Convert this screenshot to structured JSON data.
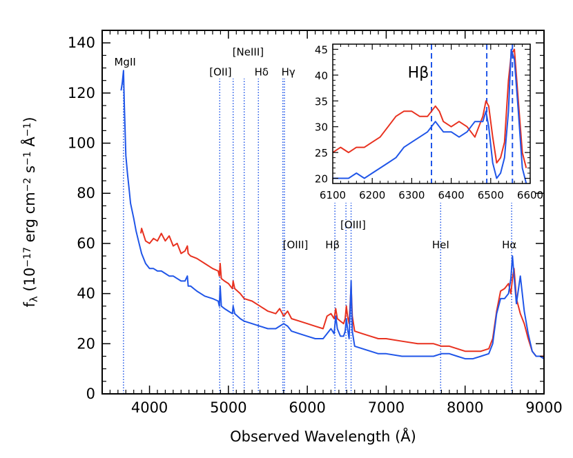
{
  "chart_data": [
    {
      "type": "line",
      "xlabel": "Observed Wavelength (Å)",
      "ylabel_parts": [
        "f",
        "λ",
        " (10",
        "−17",
        " erg cm",
        "−2",
        " s",
        "−1",
        " Å",
        "−1",
        ")"
      ],
      "xlim": [
        3400,
        9000
      ],
      "ylim": [
        0,
        145
      ],
      "xticks": [
        4000,
        5000,
        6000,
        7000,
        8000,
        9000
      ],
      "yticks": [
        0,
        20,
        40,
        60,
        80,
        100,
        120,
        140
      ],
      "line_markers": [
        {
          "label": "MgII",
          "x": 3670
        },
        {
          "label": "[OII]",
          "x": 4890
        },
        {
          "label": "[NeIII]",
          "x": 5060
        },
        {
          "label": "[NeIII]",
          "x": 5200
        },
        {
          "label": "Hδ",
          "x": 5380
        },
        {
          "label": "Hγ",
          "x": 5690
        },
        {
          "label": "Hγ",
          "x": 5710
        },
        {
          "label": "[OIII]",
          "x": 5690
        },
        {
          "label": "Hβ",
          "x": 6350
        },
        {
          "label": "[OIII]",
          "x": 6490
        },
        {
          "label": "[OIII]",
          "x": 6555
        },
        {
          "label": "HeI",
          "x": 7690
        },
        {
          "label": "Hα",
          "x": 8590
        }
      ],
      "marker_labels": [
        {
          "text": "MgII",
          "x": 3690,
          "y": 131
        },
        {
          "text": "[OII]",
          "x": 4900,
          "y": 127
        },
        {
          "text": "[NeIII]",
          "x": 5250,
          "y": 135
        },
        {
          "text": "Hδ",
          "x": 5420,
          "y": 127
        },
        {
          "text": "Hγ",
          "x": 5760,
          "y": 127
        },
        {
          "text": "[OIII]",
          "x": 5850,
          "y": 58
        },
        {
          "text": "Hβ",
          "x": 6320,
          "y": 58
        },
        {
          "text": "[OIII]",
          "x": 6580,
          "y": 66
        },
        {
          "text": "HeI",
          "x": 7690,
          "y": 58
        },
        {
          "text": "Hα",
          "x": 8560,
          "y": 58
        }
      ],
      "series": [
        {
          "color": "#e8311f",
          "x": [
            3890,
            3900,
            3950,
            4000,
            4050,
            4100,
            4150,
            4200,
            4250,
            4300,
            4350,
            4400,
            4450,
            4480,
            4490,
            4520,
            4600,
            4700,
            4800,
            4870,
            4885,
            4895,
            4910,
            4950,
            5000,
            5050,
            5060,
            5080,
            5150,
            5200,
            5300,
            5400,
            5500,
            5600,
            5650,
            5700,
            5750,
            5800,
            5900,
            6000,
            6100,
            6200,
            6250,
            6300,
            6340,
            6360,
            6380,
            6420,
            6460,
            6480,
            6495,
            6510,
            6530,
            6555,
            6570,
            6600,
            6700,
            6800,
            6900,
            7000,
            7200,
            7400,
            7600,
            7700,
            7800,
            7900,
            8000,
            8100,
            8200,
            8300,
            8350,
            8400,
            8450,
            8500,
            8550,
            8580,
            8600,
            8620,
            8650,
            8700,
            8750,
            8800,
            8850,
            8900,
            8950,
            9000
          ],
          "y": [
            64,
            66,
            61,
            60,
            62,
            61,
            64,
            61,
            63,
            59,
            60,
            56,
            57,
            59,
            56,
            55,
            54,
            52,
            50,
            49,
            47,
            52,
            46,
            45,
            44,
            42,
            45,
            42,
            40,
            38,
            37,
            35,
            33,
            32,
            34,
            31,
            33,
            30,
            29,
            28,
            27,
            26,
            31,
            32,
            30,
            34,
            30,
            29,
            28,
            30,
            35,
            31,
            28,
            43,
            31,
            25,
            24,
            23,
            22,
            22,
            21,
            20,
            20,
            19,
            19,
            18,
            17,
            17,
            17,
            18,
            22,
            33,
            41,
            42,
            44,
            40,
            46,
            50,
            38,
            32,
            28,
            22,
            17,
            15,
            15,
            15
          ]
        },
        {
          "color": "#1f55e8",
          "x": [
            3640,
            3655,
            3670,
            3680,
            3690,
            3700,
            3720,
            3740,
            3760,
            3780,
            3800,
            3830,
            3860,
            3900,
            3950,
            4000,
            4050,
            4100,
            4150,
            4200,
            4250,
            4300,
            4350,
            4400,
            4450,
            4480,
            4490,
            4520,
            4600,
            4700,
            4800,
            4870,
            4885,
            4895,
            4910,
            4950,
            5000,
            5050,
            5060,
            5080,
            5150,
            5200,
            5300,
            5400,
            5500,
            5600,
            5650,
            5700,
            5750,
            5800,
            5900,
            6000,
            6100,
            6200,
            6250,
            6300,
            6340,
            6360,
            6380,
            6420,
            6460,
            6480,
            6495,
            6510,
            6530,
            6555,
            6570,
            6600,
            6700,
            6800,
            6900,
            7000,
            7200,
            7400,
            7600,
            7700,
            7800,
            7900,
            8000,
            8100,
            8200,
            8300,
            8350,
            8400,
            8450,
            8500,
            8550,
            8580,
            8600,
            8620,
            8650,
            8700,
            8750,
            8800,
            8850,
            8900,
            8950,
            9000
          ],
          "y": [
            121,
            124,
            129,
            116,
            106,
            95,
            88,
            82,
            76,
            73,
            70,
            65,
            61,
            56,
            52,
            50,
            50,
            49,
            49,
            48,
            47,
            47,
            46,
            45,
            45,
            47,
            43,
            43,
            41,
            39,
            38,
            37,
            35,
            43,
            35,
            34,
            33,
            32,
            35,
            32,
            30,
            29,
            28,
            27,
            26,
            26,
            27,
            28,
            27,
            25,
            24,
            23,
            22,
            22,
            24,
            26,
            24,
            31,
            26,
            23,
            23,
            25,
            30,
            26,
            22,
            45,
            25,
            19,
            18,
            17,
            16,
            16,
            15,
            15,
            15,
            16,
            16,
            15,
            14,
            14,
            15,
            16,
            20,
            32,
            38,
            38,
            40,
            46,
            55,
            47,
            36,
            47,
            33,
            24,
            17,
            15,
            15,
            14
          ]
        }
      ]
    },
    {
      "type": "line",
      "xlim": [
        6100,
        6600
      ],
      "ylim": [
        19,
        46
      ],
      "xticks": [
        6100,
        6200,
        6300,
        6400,
        6500,
        6600
      ],
      "yticks": [
        20,
        25,
        30,
        35,
        40,
        45
      ],
      "annotation": "Hβ",
      "line_markers": [
        6350,
        6490,
        6555
      ],
      "series": [
        {
          "color": "#e8311f",
          "x": [
            6100,
            6120,
            6140,
            6160,
            6180,
            6200,
            6220,
            6240,
            6260,
            6280,
            6300,
            6320,
            6340,
            6350,
            6360,
            6370,
            6380,
            6400,
            6420,
            6440,
            6460,
            6470,
            6480,
            6488,
            6495,
            6505,
            6515,
            6525,
            6535,
            6545,
            6552,
            6560,
            6570,
            6580,
            6590
          ],
          "y": [
            25,
            26,
            25,
            26,
            26,
            27,
            28,
            30,
            32,
            33,
            33,
            32,
            32,
            33,
            34,
            33,
            31,
            30,
            31,
            30,
            28,
            30,
            32,
            35,
            34,
            28,
            23,
            24,
            27,
            39,
            44,
            45,
            35,
            25,
            22
          ]
        },
        {
          "color": "#1f55e8",
          "x": [
            6100,
            6120,
            6140,
            6160,
            6180,
            6200,
            6220,
            6240,
            6260,
            6280,
            6300,
            6320,
            6340,
            6350,
            6360,
            6370,
            6380,
            6400,
            6420,
            6440,
            6460,
            6470,
            6480,
            6488,
            6495,
            6505,
            6515,
            6525,
            6535,
            6545,
            6552,
            6560,
            6570,
            6580,
            6590
          ],
          "y": [
            20,
            20,
            20,
            21,
            20,
            21,
            22,
            23,
            24,
            26,
            27,
            28,
            29,
            30,
            31,
            30,
            29,
            29,
            28,
            29,
            31,
            31,
            31,
            33,
            30,
            23,
            20,
            21,
            24,
            33,
            45,
            43,
            33,
            22,
            19
          ]
        }
      ]
    }
  ]
}
